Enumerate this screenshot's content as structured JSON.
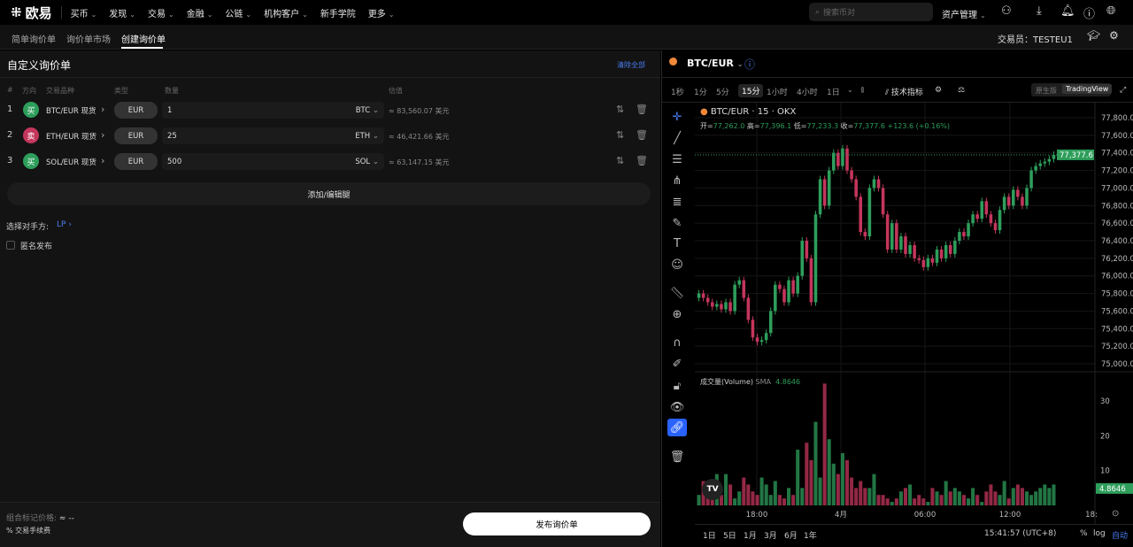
{
  "nav": {
    "logo": "欧易",
    "items": [
      "买币",
      "发现",
      "交易",
      "金融",
      "公链",
      "机构客户",
      "新手学院",
      "更多"
    ],
    "search_placeholder": "搜索币对",
    "assets": "资产管理"
  },
  "subtabs": [
    "简单询价单",
    "询价单市场",
    "创建询价单"
  ],
  "trader": {
    "label": "交易员：",
    "value": "TESTEU1"
  },
  "form": {
    "title": "自定义询价单",
    "clear_all": "清除全部",
    "headers": [
      "#",
      "方向",
      "交易品种",
      "类型",
      "数量",
      "估值"
    ],
    "rows": [
      {
        "n": "1",
        "side": "买",
        "side_color": "#2e9e5b",
        "instrument": "BTC/EUR 现货",
        "type": "EUR",
        "qty": "1",
        "unit": "BTC",
        "est": "≈ 83,560.07 美元"
      },
      {
        "n": "2",
        "side": "卖",
        "side_color": "#c4365c",
        "instrument": "ETH/EUR 现货",
        "type": "EUR",
        "qty": "25",
        "unit": "ETH",
        "est": "≈ 46,421.66 美元"
      },
      {
        "n": "3",
        "side": "买",
        "side_color": "#2e9e5b",
        "instrument": "SOL/EUR 现货",
        "type": "EUR",
        "qty": "500",
        "unit": "SOL",
        "est": "≈ 63,147.15 美元"
      }
    ],
    "add_leg": "添加/编辑腿",
    "counterparty_label": "选择对手方:",
    "counterparty_value": "LP",
    "anonymous": "匿名发布",
    "mark_price_label": "组合标记价格:",
    "mark_price_value": "≈ --",
    "fee": "交易手续费",
    "submit": "发布询价单"
  },
  "chart_header": {
    "pair": "BTC/EUR",
    "timeframes": [
      "1秒",
      "1分",
      "5分",
      "15分",
      "1小时",
      "4小时",
      "1日"
    ],
    "active_tf": "15分",
    "indicators": "技术指标",
    "view_native": "原生版",
    "view_tv": "TradingView"
  },
  "legend": {
    "title": "BTC/EUR · 15 · OKX",
    "o_label": "开=",
    "o": "77,262.0",
    "h_label": "高=",
    "h": "77,396.1",
    "l_label": "低=",
    "l": "77,233.3",
    "c_label": "收=",
    "c": "77,377.6",
    "change": "+123.6 (+0.16%)"
  },
  "volume_legend": {
    "label": "成交量(Volume)",
    "sma": "SMA",
    "value": "4.8646"
  },
  "bottom": {
    "ranges": [
      "1日",
      "5日",
      "1月",
      "3月",
      "6月",
      "1年"
    ],
    "time": "15:41:57 (UTC+8)",
    "pct": "%",
    "log": "log",
    "auto": "自动"
  },
  "chart_data": {
    "type": "candlestick",
    "price_ticks": [
      "77,800.0",
      "77,600.0",
      "77,400.0",
      "77,200.0",
      "77,000.0",
      "76,800.0",
      "76,600.0",
      "76,400.0",
      "76,200.0",
      "76,000.0",
      "75,800.0",
      "75,600.0",
      "75,400.0",
      "75,200.0",
      "75,000.0"
    ],
    "price_range": [
      75000,
      77800
    ],
    "last_price": "77,377.6",
    "x_ticks": [
      "18:00",
      "4月",
      "06:00",
      "12:00",
      "18:"
    ],
    "volume_ticks": [
      "30",
      "20",
      "10"
    ],
    "volume_range": [
      0,
      35
    ],
    "up_color": "#2e9e5b",
    "down_color": "#c4365c",
    "close": [
      75800,
      75750,
      75700,
      75650,
      75680,
      75620,
      75700,
      75600,
      75900,
      75950,
      75750,
      75500,
      75300,
      75250,
      75270,
      75350,
      75600,
      75900,
      75850,
      75700,
      75950,
      75800,
      76000,
      76400,
      76200,
      75700,
      76700,
      77100,
      76800,
      77200,
      77400,
      77250,
      77450,
      77200,
      77100,
      76900,
      76500,
      76450,
      77000,
      77100,
      77000,
      76700,
      76300,
      76600,
      76300,
      76450,
      76250,
      76350,
      76200,
      76180,
      76100,
      76200,
      76150,
      76300,
      76200,
      76350,
      76250,
      76400,
      76500,
      76450,
      76600,
      76700,
      76650,
      76850,
      76700,
      76600,
      76520,
      76750,
      76900,
      76800,
      76980,
      76900,
      76800,
      77000,
      77200,
      77250,
      77280,
      77300,
      77330,
      77377.6
    ],
    "volume": [
      3,
      7,
      7,
      5,
      9,
      3,
      9,
      6,
      2,
      4,
      8,
      6,
      4,
      3,
      8,
      6,
      3,
      7,
      3,
      2,
      5,
      3,
      16,
      5,
      18,
      13,
      24,
      8,
      35,
      19,
      12,
      9,
      15,
      13,
      8,
      5,
      7,
      5,
      5,
      9,
      3,
      3,
      2,
      1,
      2,
      4,
      5,
      6,
      2,
      3,
      2,
      1,
      5,
      4,
      3,
      7,
      4,
      5,
      4,
      3,
      2,
      5,
      3,
      1,
      4,
      6,
      4,
      3,
      7,
      2,
      5,
      6,
      5,
      4,
      3,
      4,
      5,
      6,
      5,
      6
    ]
  }
}
